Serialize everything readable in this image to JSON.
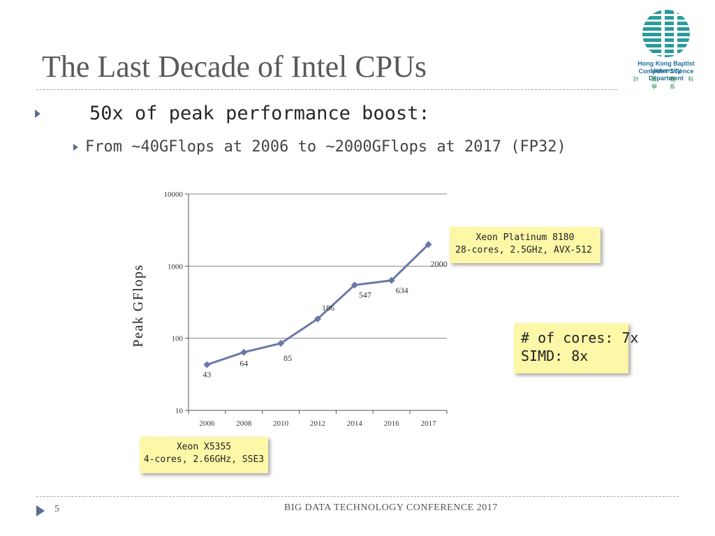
{
  "slide": {
    "title": "The Last Decade of Intel CPUs",
    "bullet1": "50x of peak performance boost:",
    "bullet2": "From ~40GFlops at 2006 to ~2000GFlops at 2017 (FP32)",
    "slide_number": "5",
    "footer": "BIG DATA TECHNOLOGY CONFERENCE 2017"
  },
  "logo": {
    "line1": "Hong Kong Baptist University",
    "line2": "Computer Science Department",
    "line3": "計 算 機 科 學 系"
  },
  "callouts": {
    "x5355": {
      "line1": "Xeon X5355",
      "line2": "4-cores, 2.66GHz, SSE3"
    },
    "platinum": {
      "line1": "Xeon Platinum 8180",
      "line2": "28-cores, 2.5GHz,  AVX-512"
    },
    "cores": {
      "line1": "# of cores: 7x",
      "line2": "SIMD: 8x"
    }
  },
  "colors": {
    "series": "#6a78a8",
    "callout_bg": "#fdf7a8",
    "title": "#595959",
    "accent": "#5a6e8c"
  },
  "chart_data": {
    "type": "line",
    "title": "",
    "xlabel": "",
    "ylabel": "Peak GFlops",
    "yscale": "log",
    "ylim": [
      10,
      10000
    ],
    "yticks": [
      10,
      100,
      1000,
      10000
    ],
    "ytick_labels": [
      "10",
      "100",
      "1000",
      "10000"
    ],
    "categories": [
      "2006",
      "2008",
      "2010",
      "2012",
      "2014",
      "2016",
      "2017"
    ],
    "series": [
      {
        "name": "Peak GFlops",
        "values": [
          43,
          64,
          85,
          186,
          547,
          634,
          2000
        ]
      }
    ],
    "data_labels": [
      "43",
      "64",
      "85",
      "186",
      "547",
      "634",
      "2000"
    ],
    "grid": true
  }
}
